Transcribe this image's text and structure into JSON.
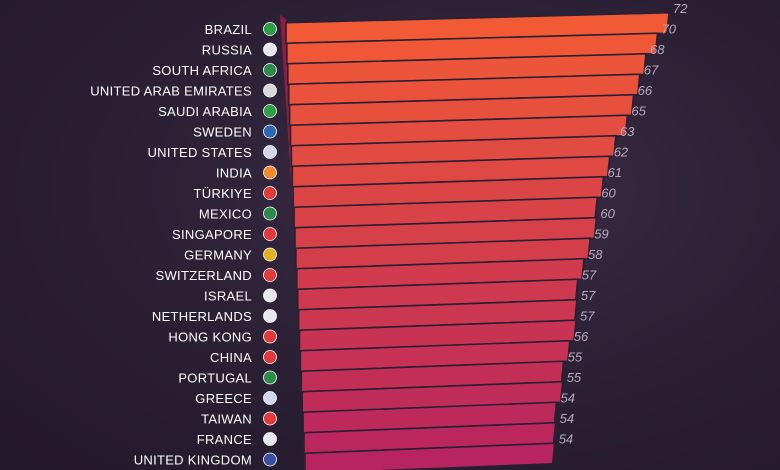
{
  "chart_data": {
    "type": "bar",
    "orientation": "horizontal",
    "title": "",
    "xlabel": "",
    "ylabel": "",
    "categories": [
      "BRAZIL",
      "RUSSIA",
      "SOUTH AFRICA",
      "UNITED ARAB EMIRATES",
      "SAUDI ARABIA",
      "SWEDEN",
      "UNITED STATES",
      "INDIA",
      "TÜRKIYE",
      "MEXICO",
      "SINGAPORE",
      "GERMANY",
      "SWITZERLAND",
      "ISRAEL",
      "NETHERLANDS",
      "HONG KONG",
      "CHINA",
      "PORTUGAL",
      "GREECE",
      "TAIWAN",
      "FRANCE",
      "UNITED KINGDOM"
    ],
    "values": [
      72,
      70,
      68,
      67,
      66,
      65,
      63,
      62,
      61,
      60,
      60,
      59,
      58,
      57,
      57,
      57,
      56,
      55,
      55,
      54,
      54,
      54
    ],
    "value_labels": [
      "72",
      "70",
      "68",
      "67",
      "66",
      "65",
      "63",
      "62",
      "61",
      "60",
      "60",
      "59",
      "58",
      "57",
      "57",
      "57",
      "56",
      "55",
      "55",
      "54",
      "54",
      "54"
    ],
    "flag_icons": [
      "brazil-flag-icon",
      "russia-flag-icon",
      "south-africa-flag-icon",
      "uae-flag-icon",
      "saudi-arabia-flag-icon",
      "sweden-flag-icon",
      "united-states-flag-icon",
      "india-flag-icon",
      "turkiye-flag-icon",
      "mexico-flag-icon",
      "singapore-flag-icon",
      "germany-flag-icon",
      "switzerland-flag-icon",
      "israel-flag-icon",
      "netherlands-flag-icon",
      "hong-kong-flag-icon",
      "china-flag-icon",
      "portugal-flag-icon",
      "greece-flag-icon",
      "taiwan-flag-icon",
      "france-flag-icon",
      "united-kingdom-flag-icon"
    ],
    "colors": {
      "background": "#2a1f33",
      "bar_top": "#f25a35",
      "bar_bottom": "#b8245f",
      "bar_side": "#8a1e43",
      "label": "#ffffff",
      "value_label": "#b7a9bd"
    },
    "grid": false,
    "legend": "none"
  }
}
